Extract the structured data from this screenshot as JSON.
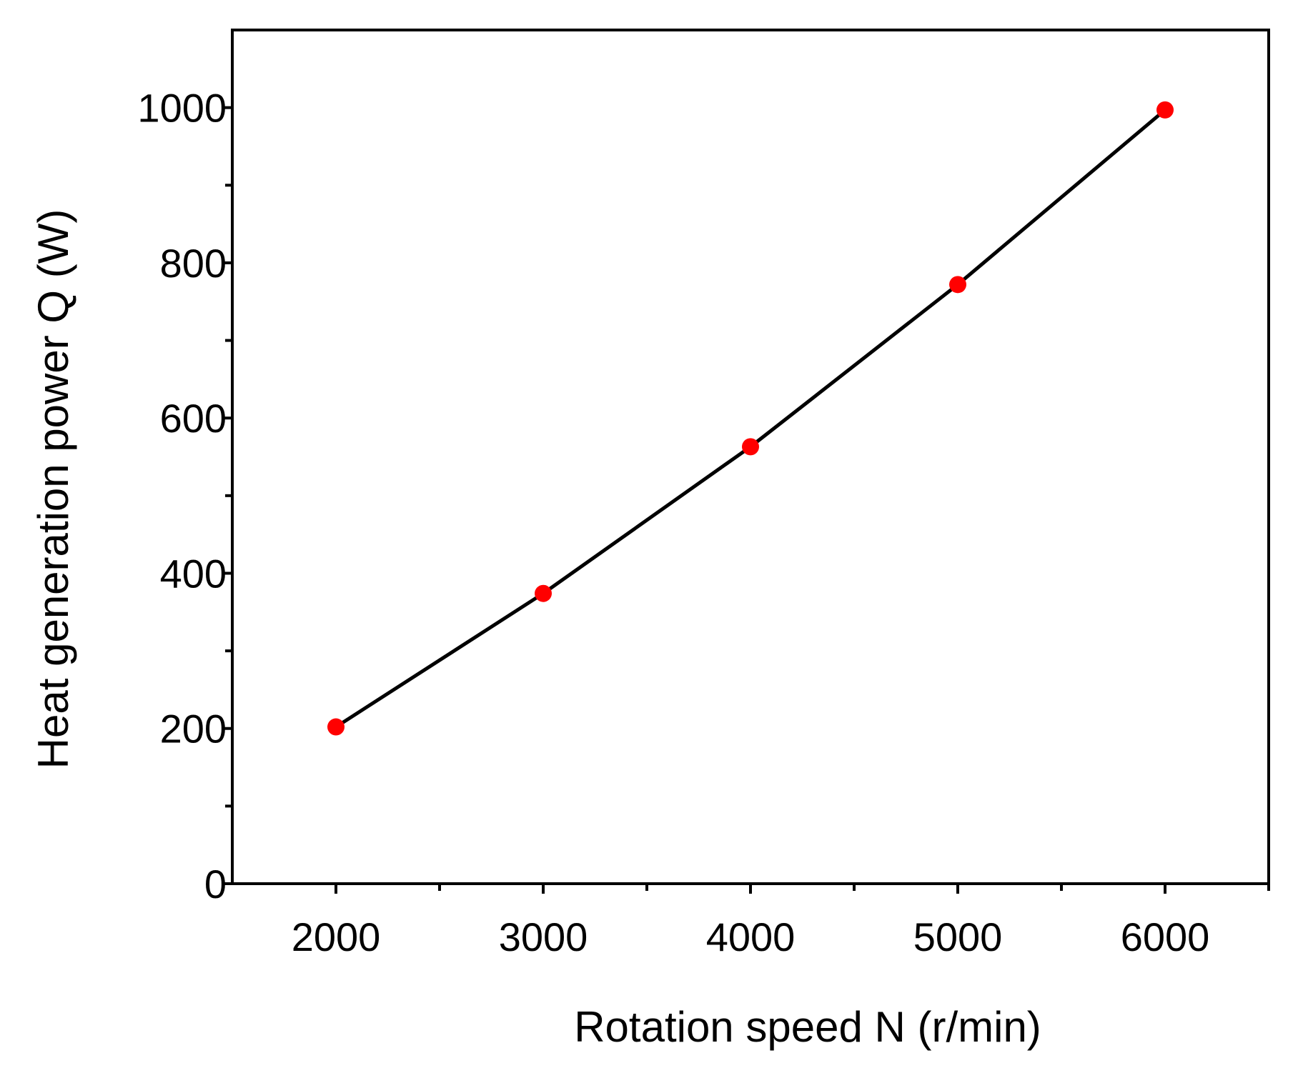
{
  "chart_data": {
    "type": "line",
    "title": "",
    "xlabel": "Rotation speed N (r/min)",
    "ylabel": "Heat generation power Q (W)",
    "xlim": [
      1500,
      6500
    ],
    "ylim": [
      0,
      1100
    ],
    "xticks": [
      2000,
      3000,
      4000,
      5000,
      6000
    ],
    "xminor_ticks": [
      2500,
      3500,
      4500,
      5500,
      6500
    ],
    "yticks": [
      0,
      200,
      400,
      600,
      800,
      1000
    ],
    "yminor_ticks": [
      100,
      300,
      500,
      700,
      900
    ],
    "grid": false,
    "series": [
      {
        "name": "Q",
        "x": [
          2000,
          3000,
          4000,
          5000,
          6000
        ],
        "y": [
          202,
          374,
          563,
          772,
          997
        ],
        "line_color": "#000000",
        "marker_color": "#ff0000"
      }
    ]
  }
}
